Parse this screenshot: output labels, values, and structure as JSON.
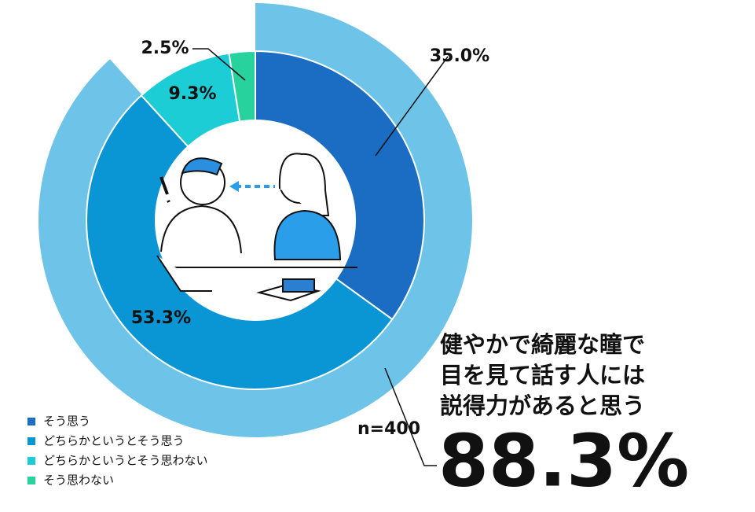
{
  "chart_data": {
    "type": "donut",
    "categories": [
      "そう思う",
      "どちらかというとそう思う",
      "どちらかというとそう思わない",
      "そう思わない"
    ],
    "values": [
      35.0,
      53.3,
      9.3,
      2.5
    ],
    "value_labels": [
      "35.0%",
      "53.3%",
      "9.3%",
      "2.5%"
    ],
    "colors": [
      "#1a6dc2",
      "#0a96d4",
      "#1ccdd6",
      "#27d29c"
    ],
    "note": "n=400",
    "highlight": {
      "value": 88.3,
      "label": "88.3%",
      "color": "#6dc3e8",
      "text": [
        "健やかで綺麗な瞳で",
        "目を見て話す人には",
        "説得力があると思う"
      ]
    }
  }
}
